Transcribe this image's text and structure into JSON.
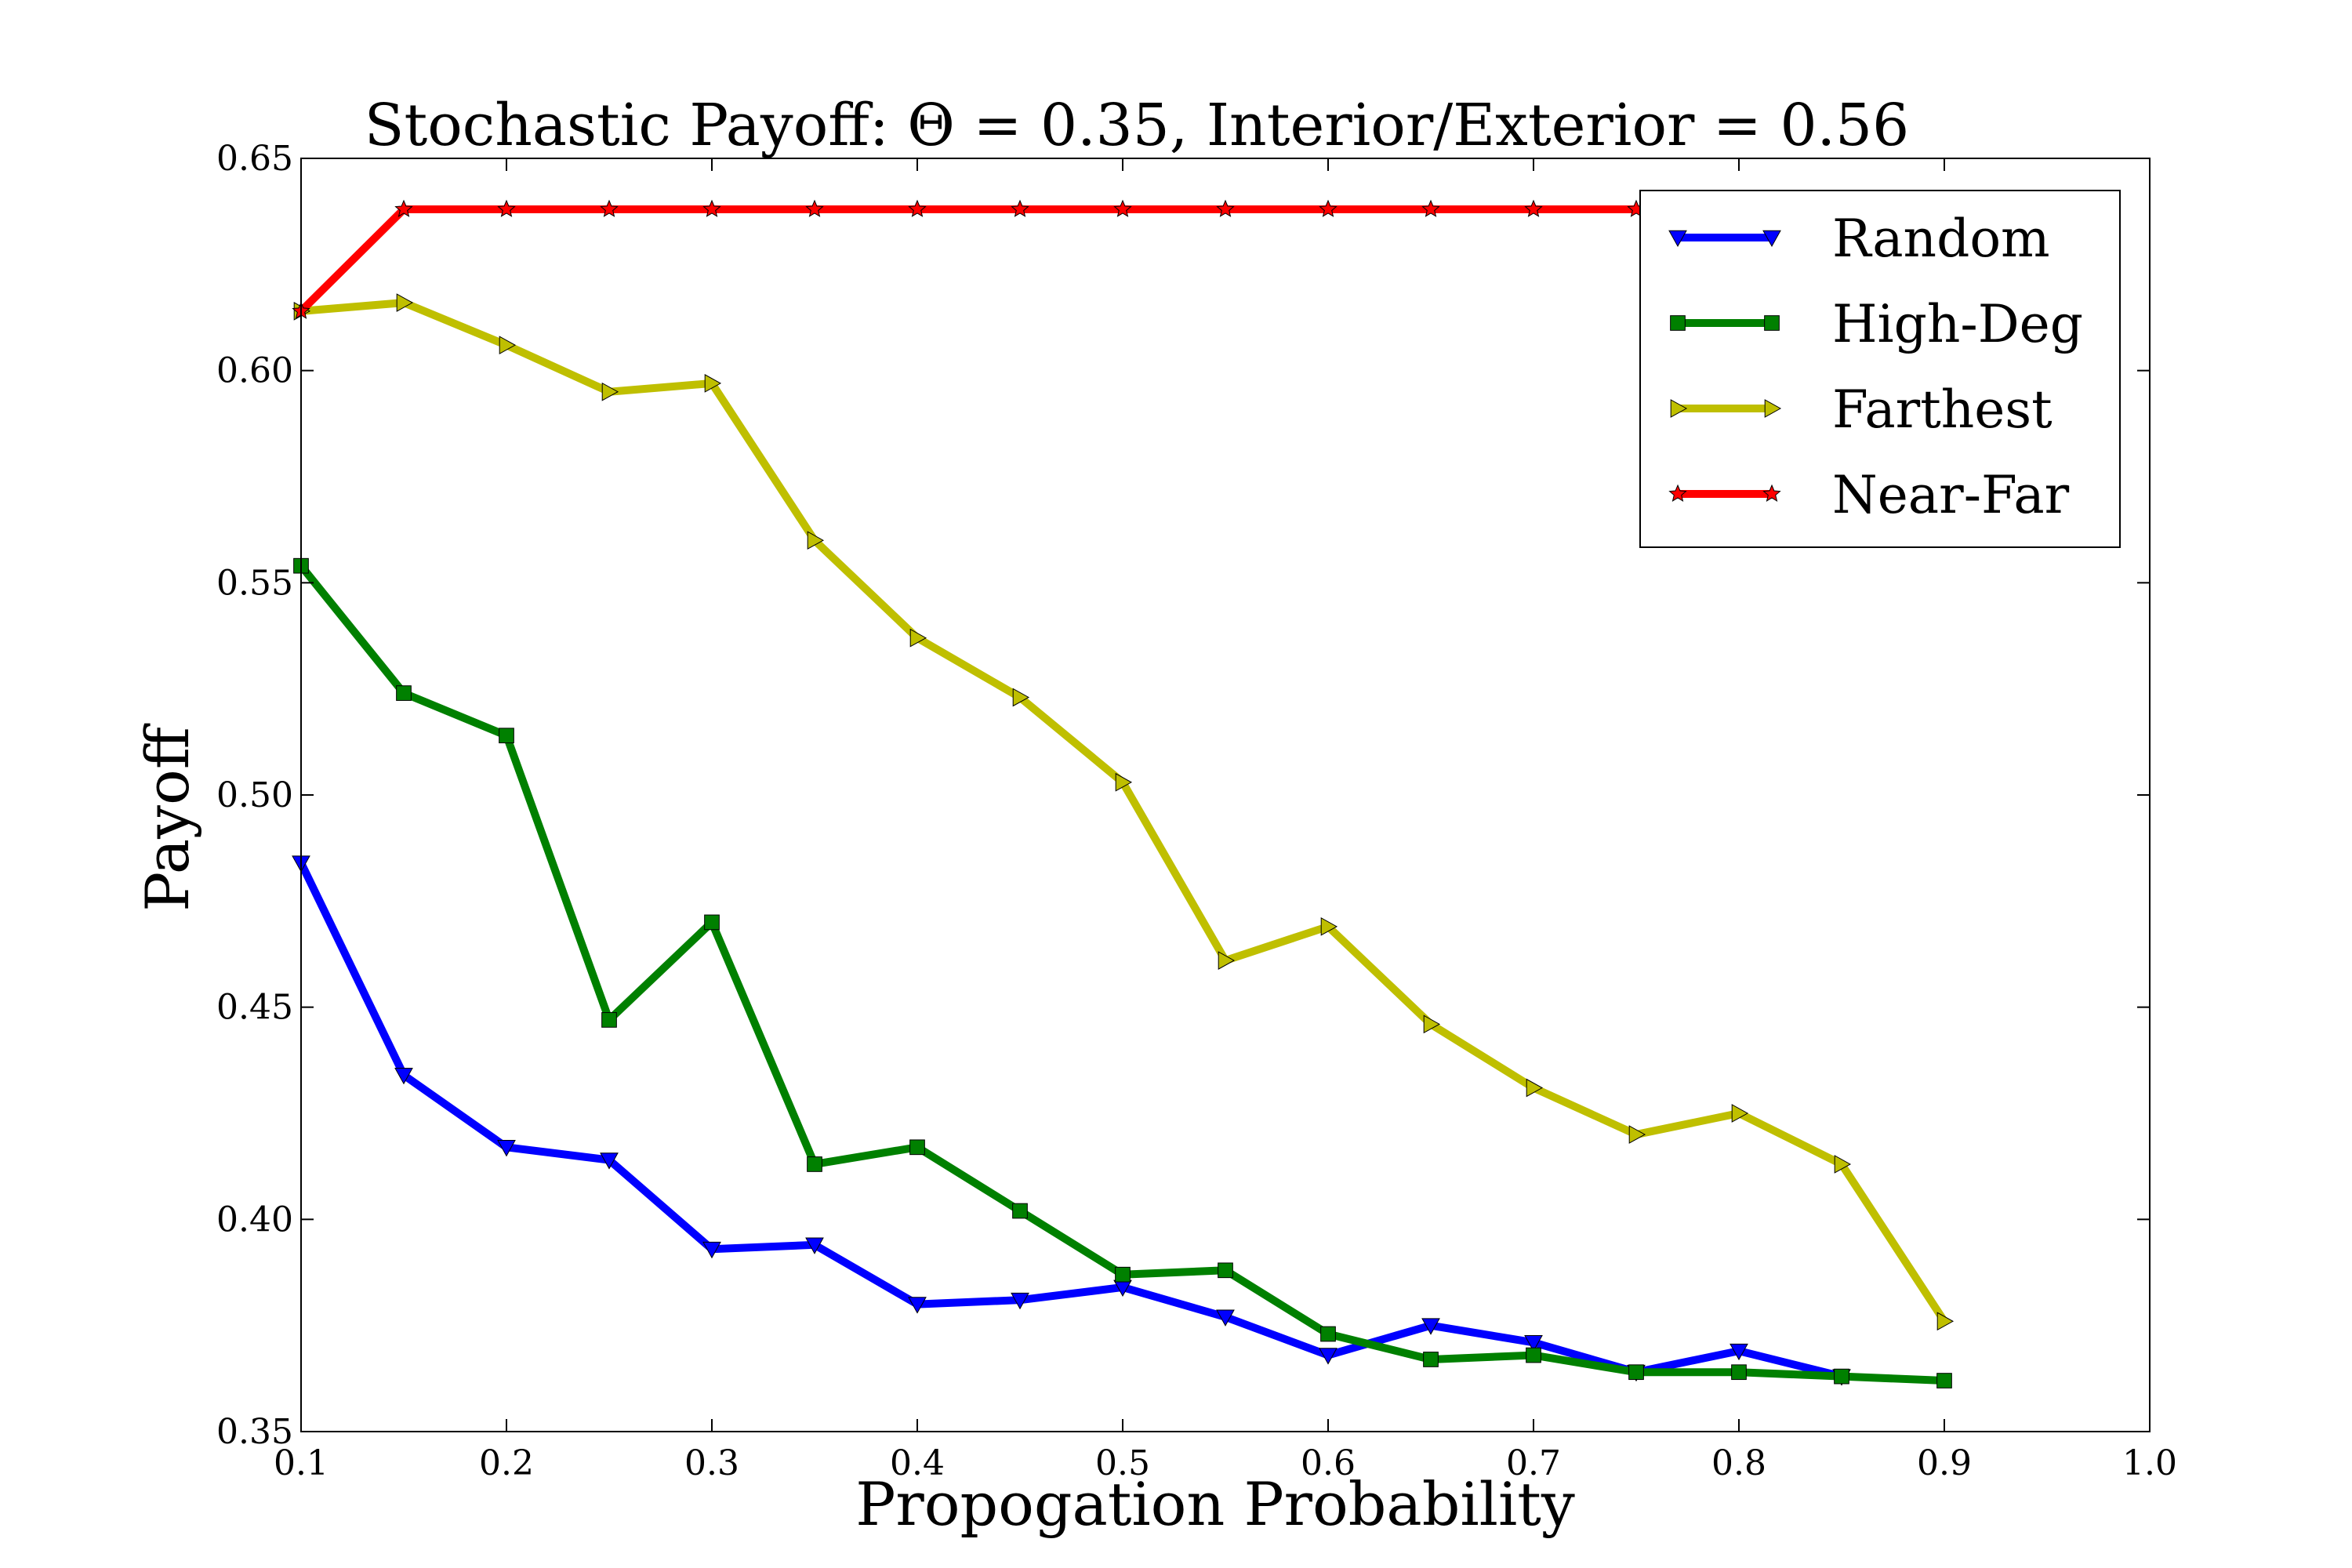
{
  "chart_data": {
    "type": "line",
    "title": "Stochastic Payoff: Θ = 0.35, Interior/Exterior = 0.56",
    "xlabel": "Propogation Probability",
    "ylabel": "Payoff",
    "xlim": [
      0.1,
      1.0
    ],
    "ylim": [
      0.35,
      0.65
    ],
    "xticks": [
      "0.1",
      "0.2",
      "0.3",
      "0.4",
      "0.5",
      "0.6",
      "0.7",
      "0.8",
      "0.9",
      "1.0"
    ],
    "yticks": [
      "0.35",
      "0.40",
      "0.45",
      "0.50",
      "0.55",
      "0.60",
      "0.65"
    ],
    "grid": false,
    "legend_position": "top-right",
    "x": [
      0.1,
      0.15,
      0.2,
      0.25,
      0.3,
      0.35,
      0.4,
      0.45,
      0.5,
      0.55,
      0.6,
      0.65,
      0.7,
      0.75,
      0.8,
      0.85,
      0.9
    ],
    "series": [
      {
        "name": "Random",
        "color": "#0000ff",
        "marker": "triangle-down",
        "values": [
          0.484,
          0.434,
          0.417,
          0.414,
          0.393,
          0.394,
          0.38,
          0.381,
          0.384,
          0.377,
          0.368,
          0.375,
          0.371,
          0.364,
          0.369,
          0.363,
          null
        ]
      },
      {
        "name": "High-Deg",
        "color": "#008000",
        "marker": "square",
        "values": [
          0.554,
          0.524,
          0.514,
          0.447,
          0.47,
          0.413,
          0.417,
          0.402,
          0.387,
          0.388,
          0.373,
          0.367,
          0.368,
          0.364,
          0.364,
          0.363,
          0.362
        ]
      },
      {
        "name": "Farthest",
        "color": "#bfbf00",
        "marker": "triangle-right",
        "values": [
          0.614,
          0.616,
          0.606,
          0.595,
          0.597,
          0.56,
          0.537,
          0.523,
          0.503,
          0.461,
          0.469,
          0.446,
          0.431,
          0.42,
          0.425,
          0.413,
          0.376
        ]
      },
      {
        "name": "Near-Far",
        "color": "#ff0000",
        "marker": "star",
        "values": [
          0.614,
          0.638,
          0.638,
          0.638,
          0.638,
          0.638,
          0.638,
          0.638,
          0.638,
          0.638,
          0.638,
          0.638,
          0.638,
          0.638,
          0.638,
          0.638,
          0.638
        ]
      }
    ]
  }
}
